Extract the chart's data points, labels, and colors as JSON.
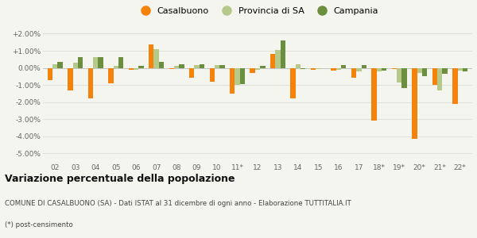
{
  "years": [
    "02",
    "03",
    "04",
    "05",
    "06",
    "07",
    "08",
    "09",
    "10",
    "11*",
    "12",
    "13",
    "14",
    "15",
    "16",
    "17",
    "18*",
    "19*",
    "20*",
    "21*",
    "22*"
  ],
  "casalbuono": [
    -0.7,
    -1.3,
    -1.8,
    -0.9,
    -0.1,
    1.35,
    -0.05,
    -0.6,
    -0.8,
    -1.5,
    -0.3,
    0.8,
    -1.8,
    -0.1,
    -0.15,
    -0.6,
    -3.1,
    -0.05,
    -4.15,
    -1.0,
    -2.1
  ],
  "provincia_sa": [
    0.2,
    0.3,
    0.65,
    0.1,
    -0.1,
    1.1,
    0.1,
    0.15,
    0.15,
    -1.0,
    -0.1,
    1.05,
    0.2,
    -0.05,
    -0.1,
    -0.2,
    -0.2,
    -0.85,
    -0.3,
    -1.3,
    -0.15
  ],
  "campania": [
    0.35,
    0.65,
    0.65,
    0.65,
    0.1,
    0.35,
    0.2,
    0.2,
    0.15,
    -0.95,
    0.1,
    1.6,
    -0.05,
    0.0,
    0.15,
    0.15,
    -0.15,
    -1.2,
    -0.5,
    -0.35,
    -0.2
  ],
  "color_casalbuono": "#f5820a",
  "color_provincia": "#b5c98a",
  "color_campania": "#6b8f3e",
  "bg_color": "#f5f5f0",
  "grid_color": "#e0e0d8",
  "ylim": [
    -5.5,
    2.3
  ],
  "yticks": [
    -5.0,
    -4.0,
    -3.0,
    -2.0,
    -1.0,
    0.0,
    1.0,
    2.0
  ],
  "ytick_labels": [
    "-5.00%",
    "-4.00%",
    "-3.00%",
    "-2.00%",
    "-1.00%",
    "0.00%",
    "+1.00%",
    "+2.00%"
  ],
  "title_main": "Variazione percentuale della popolazione",
  "subtitle": "COMUNE DI CASALBUONO (SA) - Dati ISTAT al 31 dicembre di ogni anno - Elaborazione TUTTITALIA.IT",
  "footnote": "(*) post-censimento",
  "legend_labels": [
    "Casalbuono",
    "Provincia di SA",
    "Campania"
  ]
}
